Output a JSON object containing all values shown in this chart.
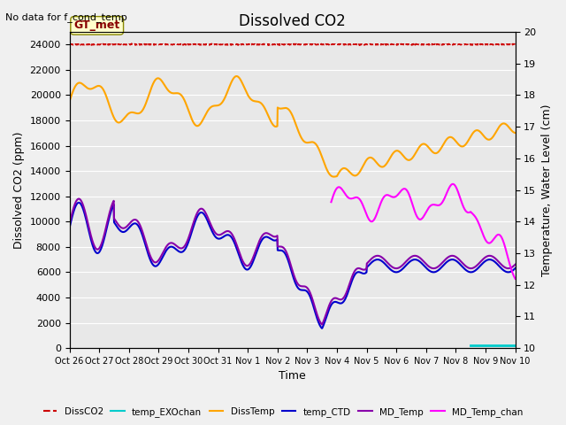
{
  "title": "Dissolved CO2",
  "subtitle": "No data for f_cond_temp",
  "xlabel": "Time",
  "ylabel_left": "Dissolved CO2 (ppm)",
  "ylabel_right": "Temperature, Water Level (cm)",
  "ylim_left": [
    0,
    25000
  ],
  "ylim_right": [
    10.0,
    20.0
  ],
  "yticks_left": [
    0,
    2000,
    4000,
    6000,
    8000,
    10000,
    12000,
    14000,
    16000,
    18000,
    20000,
    22000,
    24000
  ],
  "yticks_right": [
    10.0,
    11.0,
    12.0,
    13.0,
    14.0,
    15.0,
    16.0,
    17.0,
    18.0,
    19.0,
    20.0
  ],
  "xtick_labels": [
    "Oct 26",
    "Oct 27",
    "Oct 28",
    "Oct 29",
    "Oct 30",
    "Oct 31",
    "Nov 1",
    "Nov 2",
    "Nov 3",
    "Nov 4",
    "Nov 5",
    "Nov 6",
    "Nov 7",
    "Nov 8",
    "Nov 9",
    "Nov 10"
  ],
  "colors": {
    "DissCO2": "#cc0000",
    "temp_EXOchan": "#00cccc",
    "DissTemp": "#ffa500",
    "temp_CTD": "#0000cc",
    "MD_Temp": "#8800aa",
    "MD_Temp_chan": "#ff00ff"
  },
  "gt_met_box_color": "#ffffcc",
  "gt_met_text_color": "#880000"
}
